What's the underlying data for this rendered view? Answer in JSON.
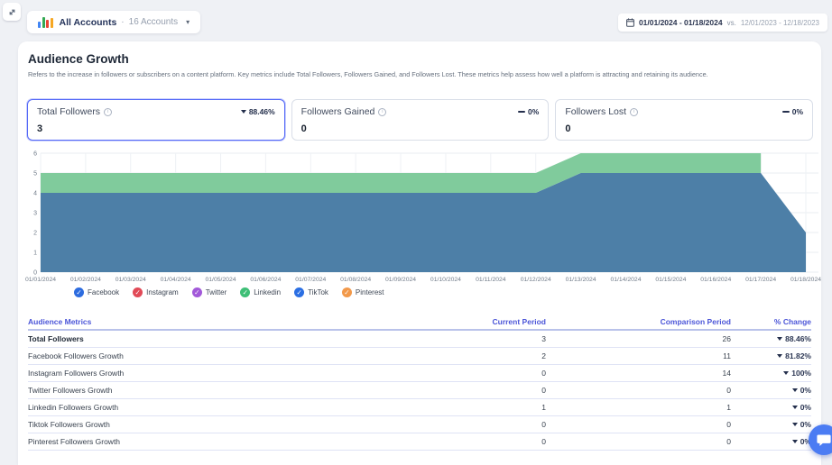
{
  "topbar": {
    "account_selector": {
      "label": "All Accounts",
      "separator": "·",
      "count_label": "16 Accounts",
      "caret": "▾"
    },
    "date_range": {
      "current": "01/01/2024 - 01/18/2024",
      "vs": "vs.",
      "comparison": "12/01/2023 - 12/18/2023"
    }
  },
  "section": {
    "title": "Audience Growth",
    "description": "Refers to the increase in followers or subscribers on a content platform. Key metrics include Total Followers, Followers Gained, and Followers Lost. These metrics help assess how well a platform is attracting and retaining its audience."
  },
  "icons": {
    "info_glyph": "i",
    "legend_check": "✓"
  },
  "metric_cards": [
    {
      "title": "Total Followers",
      "value": "3",
      "change": "88.46%",
      "direction": "down",
      "active": true
    },
    {
      "title": "Followers Gained",
      "value": "0",
      "change": "0%",
      "direction": "flat",
      "active": false
    },
    {
      "title": "Followers Lost",
      "value": "0",
      "change": "0%",
      "direction": "flat",
      "active": false
    }
  ],
  "chart_data": {
    "type": "area",
    "stacked": true,
    "grid": true,
    "legend_position": "bottom",
    "ylim": [
      0,
      6
    ],
    "yticks": [
      0,
      1,
      2,
      3,
      4,
      5,
      6
    ],
    "x": [
      "01/01/2024",
      "01/02/2024",
      "01/03/2024",
      "01/04/2024",
      "01/05/2024",
      "01/06/2024",
      "01/07/2024",
      "01/08/2024",
      "01/09/2024",
      "01/10/2024",
      "01/11/2024",
      "01/12/2024",
      "01/13/2024",
      "01/14/2024",
      "01/15/2024",
      "01/16/2024",
      "01/17/2024",
      "01/18/2024"
    ],
    "series": [
      {
        "name": "Facebook",
        "color": "#4d7fa7",
        "values": [
          4,
          4,
          4,
          4,
          4,
          4,
          4,
          4,
          4,
          4,
          4,
          4,
          5,
          5,
          5,
          5,
          5,
          2
        ]
      },
      {
        "name": "Linkedin",
        "color": "#80cb9c",
        "values": [
          1,
          1,
          1,
          1,
          1,
          1,
          1,
          1,
          1,
          1,
          1,
          1,
          1,
          1,
          1,
          1,
          1,
          null
        ]
      }
    ]
  },
  "legend": [
    {
      "label": "Facebook",
      "color": "#2d6cdf"
    },
    {
      "label": "Instagram",
      "color": "#e14a57"
    },
    {
      "label": "Twitter",
      "color": "#a259d9"
    },
    {
      "label": "Linkedin",
      "color": "#3fbf77"
    },
    {
      "label": "TikTok",
      "color": "#2b6fe3"
    },
    {
      "label": "Pinterest",
      "color": "#f2994a"
    }
  ],
  "table": {
    "headers": [
      "Audience Metrics",
      "Current Period",
      "Comparison Period",
      "% Change"
    ],
    "rows": [
      {
        "metric": "Total Followers",
        "current": "3",
        "comparison": "26",
        "change": "88.46%",
        "direction": "down",
        "bold": true
      },
      {
        "metric": "Facebook Followers Growth",
        "current": "2",
        "comparison": "11",
        "change": "81.82%",
        "direction": "down",
        "bold": false
      },
      {
        "metric": "Instagram Followers Growth",
        "current": "0",
        "comparison": "14",
        "change": "100%",
        "direction": "down",
        "bold": false
      },
      {
        "metric": "Twitter Followers Growth",
        "current": "0",
        "comparison": "0",
        "change": "0%",
        "direction": "down",
        "bold": false
      },
      {
        "metric": "Linkedin Followers Growth",
        "current": "1",
        "comparison": "1",
        "change": "0%",
        "direction": "down",
        "bold": false
      },
      {
        "metric": "Tiktok Followers Growth",
        "current": "0",
        "comparison": "0",
        "change": "0%",
        "direction": "down",
        "bold": false
      },
      {
        "metric": "Pinterest Followers Growth",
        "current": "0",
        "comparison": "0",
        "change": "0%",
        "direction": "down",
        "bold": false
      }
    ]
  }
}
